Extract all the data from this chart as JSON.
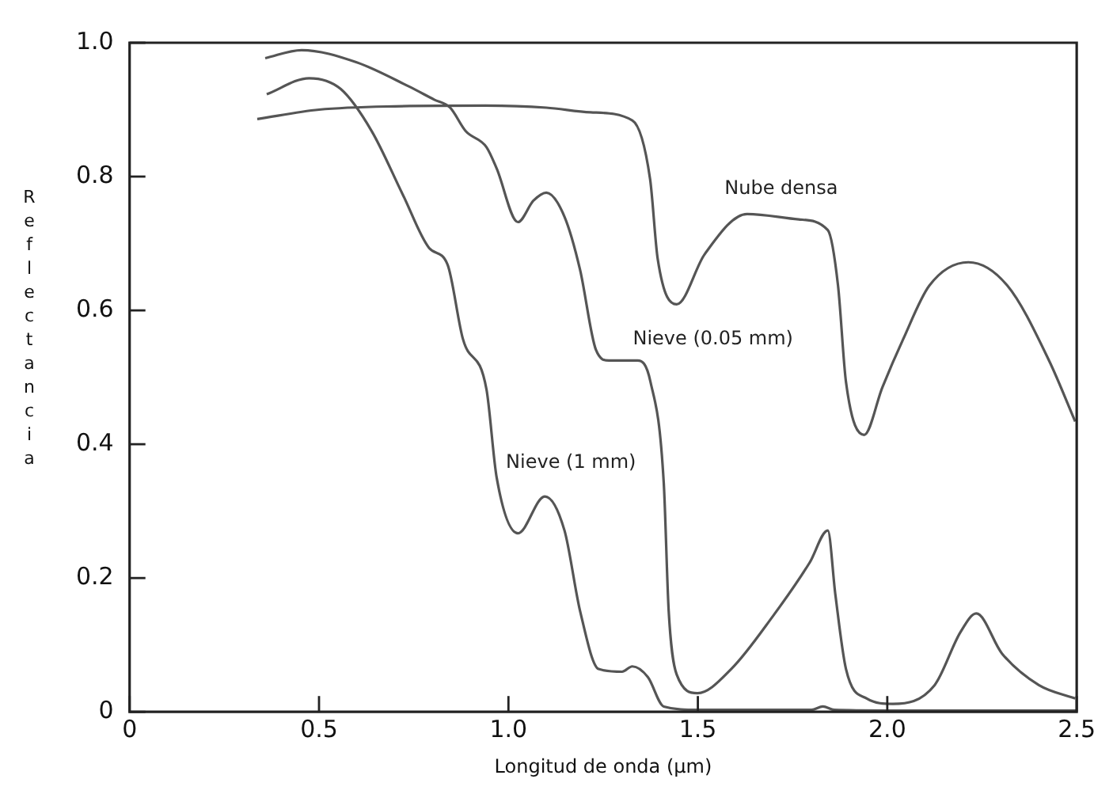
{
  "chart_data": {
    "type": "line",
    "xlabel": "Longitud de onda (µm)",
    "ylabel": "Reflectancia",
    "xlim": [
      0,
      2.5
    ],
    "ylim": [
      0,
      1.0
    ],
    "xticks": [
      0,
      0.5,
      {
        "value": 1,
        "label": "1.0"
      },
      1.5,
      {
        "value": 2,
        "label": "2.0"
      },
      2.5
    ],
    "yticks": [
      0,
      0.2,
      0.4,
      0.6,
      0.8,
      {
        "value": 1,
        "label": "1.0"
      }
    ],
    "grid": false,
    "legend": false,
    "marker": "none",
    "line_style": "solid",
    "series": [
      {
        "name": "Nube densa",
        "color": "#555555",
        "x": [
          0.337,
          0.5,
          0.7,
          0.94,
          1.1,
          1.217,
          1.327,
          1.374,
          1.394,
          1.444,
          1.518,
          1.63,
          1.766,
          1.843,
          1.87,
          1.891,
          1.939,
          1.987,
          2.042,
          2.111,
          2.214,
          2.317,
          2.427,
          2.496
        ],
        "values": [
          0.886,
          0.9,
          0.905,
          0.906,
          0.903,
          0.896,
          0.884,
          0.796,
          0.677,
          0.609,
          0.684,
          0.744,
          0.736,
          0.72,
          0.637,
          0.493,
          0.414,
          0.485,
          0.557,
          0.637,
          0.672,
          0.637,
          0.525,
          0.434
        ]
      },
      {
        "name": "Nieve (0.05 mm)",
        "color": "#555555",
        "x": [
          0.358,
          0.454,
          0.598,
          0.736,
          0.804,
          0.846,
          0.887,
          0.942,
          0.969,
          1.025,
          1.066,
          1.1,
          1.148,
          1.189,
          1.231,
          1.265,
          1.341,
          1.375,
          1.41,
          1.423,
          1.444,
          1.499,
          1.588,
          1.698,
          1.795,
          1.843,
          1.863,
          1.891,
          1.946,
          2.015,
          2.125,
          2.193,
          2.235,
          2.303,
          2.4,
          2.496
        ],
        "values": [
          0.977,
          0.989,
          0.971,
          0.935,
          0.915,
          0.903,
          0.868,
          0.844,
          0.812,
          0.732,
          0.764,
          0.776,
          0.74,
          0.661,
          0.541,
          0.525,
          0.525,
          0.493,
          0.342,
          0.151,
          0.056,
          0.028,
          0.064,
          0.143,
          0.223,
          0.271,
          0.175,
          0.064,
          0.02,
          0.012,
          0.04,
          0.119,
          0.147,
          0.087,
          0.04,
          0.02
        ]
      },
      {
        "name": "Nieve (1 mm)",
        "color": "#555555",
        "x": [
          0.362,
          0.474,
          0.557,
          0.639,
          0.722,
          0.791,
          0.839,
          0.88,
          0.942,
          0.969,
          1.025,
          1.096,
          1.148,
          1.189,
          1.238,
          1.3,
          1.327,
          1.368,
          1.41,
          1.5,
          1.8,
          1.83,
          1.86,
          2.0,
          2.5
        ],
        "values": [
          0.923,
          0.947,
          0.931,
          0.868,
          0.772,
          0.693,
          0.669,
          0.557,
          0.482,
          0.35,
          0.267,
          0.322,
          0.271,
          0.151,
          0.064,
          0.06,
          0.068,
          0.052,
          0.008,
          0.003,
          0.003,
          0.008,
          0.003,
          0.002,
          0.002
        ]
      }
    ]
  }
}
